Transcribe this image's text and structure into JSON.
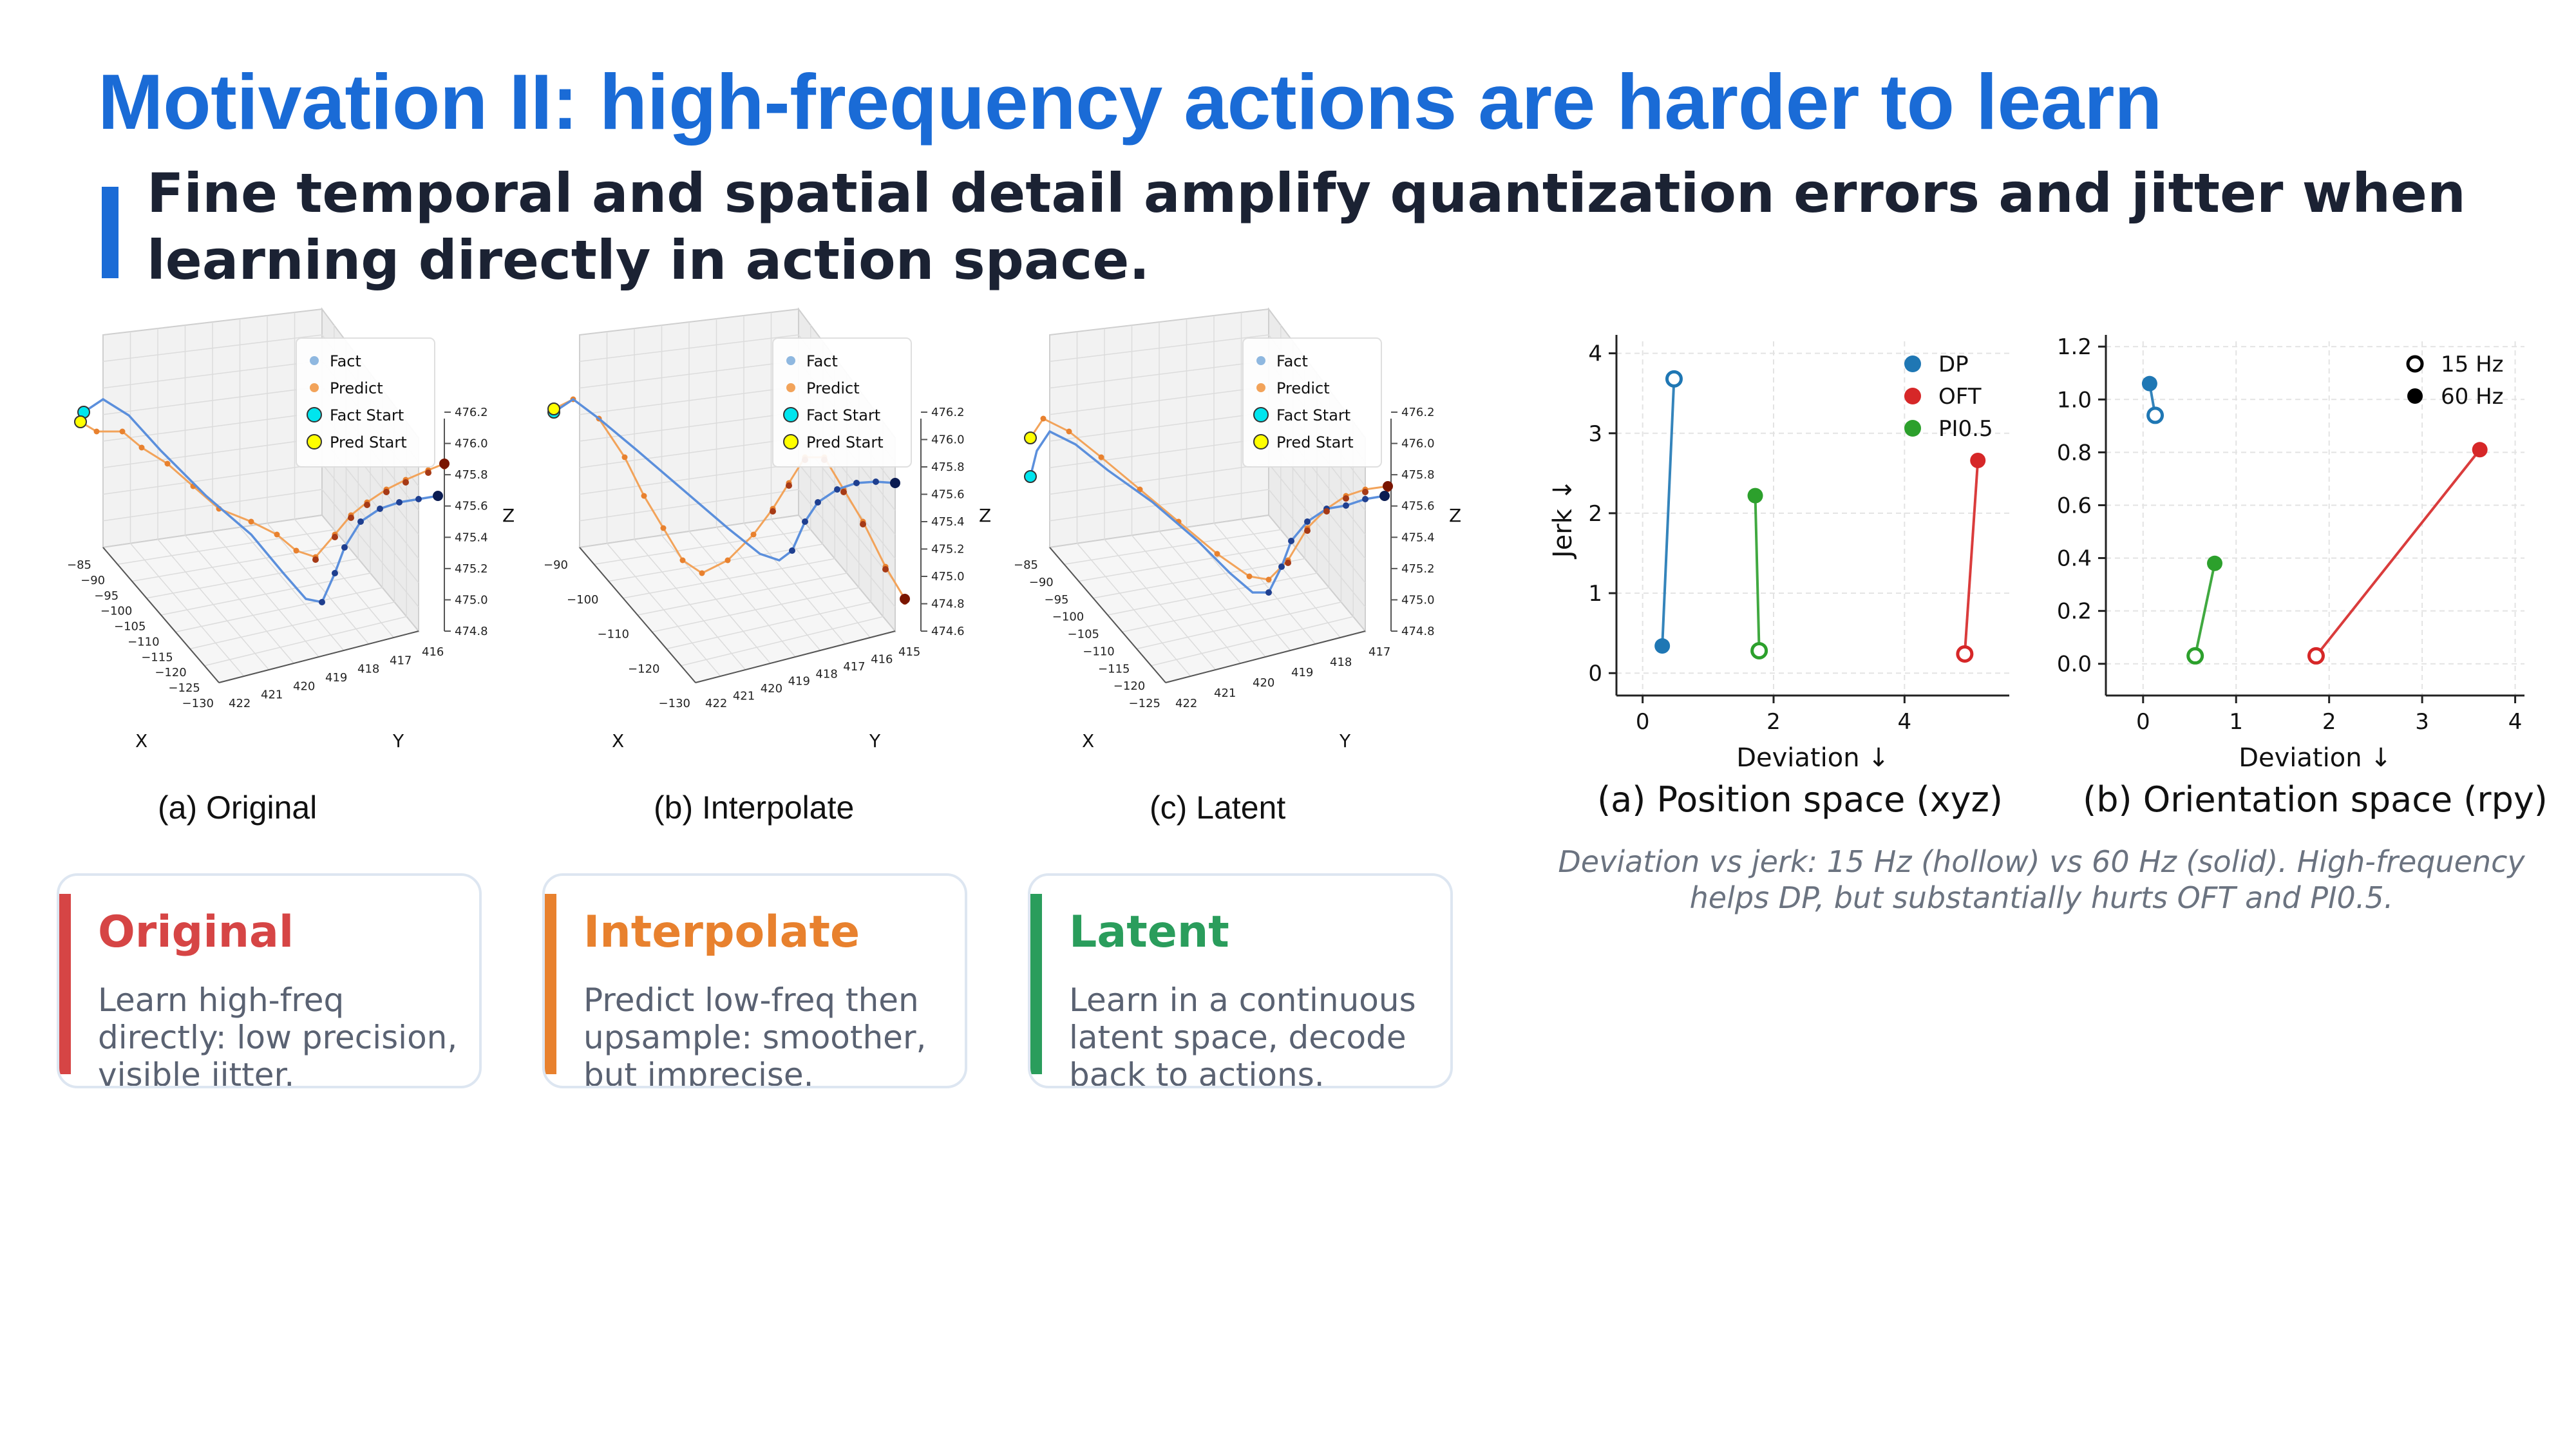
{
  "slide": {
    "title": "Motivation II: high-frequency actions are harder to learn",
    "subtitle": "Fine temporal and spatial detail amplify quantization errors and jitter when learning directly in action space."
  },
  "panels_3d": [
    {
      "caption": "(a) Original",
      "legend": [
        "Fact",
        "Predict",
        "Fact Start",
        "Pred Start"
      ],
      "x_ticks": [
        "−85",
        "−90",
        "−95",
        "−100",
        "−105",
        "−110",
        "−115",
        "−120",
        "−125",
        "−130"
      ],
      "y_ticks": [
        "416",
        "417",
        "418",
        "419",
        "420",
        "421",
        "422"
      ],
      "z_ticks": [
        "476.2",
        "476.0",
        "475.8",
        "475.6",
        "475.4",
        "475.2",
        "475.0",
        "474.8"
      ],
      "x_label": "X",
      "y_label": "Y",
      "z_label": "Z"
    },
    {
      "caption": "(b) Interpolate",
      "legend": [
        "Fact",
        "Predict",
        "Fact Start",
        "Pred Start"
      ],
      "x_ticks": [
        "−90",
        "−100",
        "−110",
        "−120",
        "−130"
      ],
      "y_ticks": [
        "415",
        "416",
        "417",
        "418",
        "419",
        "420",
        "421",
        "422"
      ],
      "z_ticks": [
        "476.2",
        "476.0",
        "475.8",
        "475.6",
        "475.4",
        "475.2",
        "475.0",
        "474.8",
        "474.6"
      ],
      "x_label": "X",
      "y_label": "Y",
      "z_label": "Z"
    },
    {
      "caption": "(c) Latent",
      "legend": [
        "Fact",
        "Predict",
        "Fact Start",
        "Pred Start"
      ],
      "x_ticks": [
        "−85",
        "−90",
        "−95",
        "−100",
        "−105",
        "−110",
        "−115",
        "−120",
        "−125"
      ],
      "y_ticks": [
        "417",
        "418",
        "419",
        "420",
        "421",
        "422"
      ],
      "z_ticks": [
        "476.2",
        "476.0",
        "475.8",
        "475.6",
        "475.4",
        "475.2",
        "475.0",
        "474.8"
      ],
      "x_label": "X",
      "y_label": "Y",
      "z_label": "Z"
    }
  ],
  "cards": [
    {
      "title": "Original",
      "desc": "Learn high-freq directly: low precision, visible jitter.",
      "color": "#d64545"
    },
    {
      "title": "Interpolate",
      "desc": "Predict low-freq then upsample: smoother, but imprecise.",
      "color": "#e8812e"
    },
    {
      "title": "Latent",
      "desc": "Learn in a continuous latent space, decode back to actions.",
      "color": "#2a9d5c"
    }
  ],
  "chart_data": [
    {
      "type": "scatter",
      "title": "(a) Position space (xyz)",
      "xlabel": "Deviation ↓",
      "ylabel": "Jerk ↓",
      "xlim": [
        -0.4,
        5.6
      ],
      "ylim": [
        -0.28,
        4.15
      ],
      "xticks": [
        0,
        2,
        4
      ],
      "yticks": [
        0,
        1,
        2,
        3,
        4
      ],
      "grid": true,
      "legend": "top-right",
      "legend_entries": [
        "DP",
        "OFT",
        "PI0.5"
      ],
      "series": [
        {
          "name": "DP",
          "color": "#1f77b4",
          "hz15": [
            0.48,
            3.68
          ],
          "hz60": [
            0.3,
            0.34
          ]
        },
        {
          "name": "OFT",
          "color": "#d62728",
          "hz15": [
            4.92,
            0.24
          ],
          "hz60": [
            5.12,
            2.66
          ]
        },
        {
          "name": "PI0.5",
          "color": "#2ca02c",
          "hz15": [
            1.78,
            0.28
          ],
          "hz60": [
            1.72,
            2.22
          ]
        }
      ]
    },
    {
      "type": "scatter",
      "title": "(b) Orientation space (rpy)",
      "xlabel": "Deviation ↓",
      "ylabel": "",
      "xlim": [
        -0.4,
        4.1
      ],
      "ylim": [
        -0.12,
        1.22
      ],
      "xticks": [
        0,
        1,
        2,
        3,
        4
      ],
      "yticks": [
        0.0,
        0.2,
        0.4,
        0.6,
        0.8,
        1.0,
        1.2
      ],
      "grid": true,
      "legend": "top-right",
      "legend_entries": [
        "15 Hz",
        "60 Hz"
      ],
      "series": [
        {
          "name": "DP",
          "color": "#1f77b4",
          "hz15": [
            0.13,
            0.94
          ],
          "hz60": [
            0.07,
            1.06
          ]
        },
        {
          "name": "OFT",
          "color": "#d62728",
          "hz15": [
            1.86,
            0.03
          ],
          "hz60": [
            3.62,
            0.81
          ]
        },
        {
          "name": "PI0.5",
          "color": "#2ca02c",
          "hz15": [
            0.56,
            0.03
          ],
          "hz60": [
            0.77,
            0.38
          ]
        }
      ]
    }
  ],
  "right_caption": "Deviation vs jerk: 15 Hz (hollow) vs 60 Hz (solid). High-frequency helps DP, but substantially hurts OFT and PI0.5."
}
